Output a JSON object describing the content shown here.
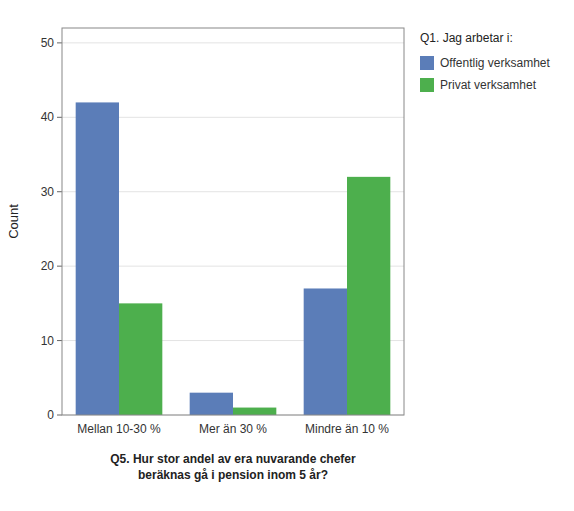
{
  "chart_data": {
    "type": "bar",
    "xlabel": "Q5. Hur stor andel av era nuvarande chefer\nberäknas gå i pension inom 5 år?",
    "ylabel": "Count",
    "legend_title": "Q1. Jag arbetar i:",
    "categories": [
      "Mellan 10-30 %",
      "Mer än 30 %",
      "Mindre än 10 %"
    ],
    "series": [
      {
        "name": "Offentlig verksamhet",
        "color": "#5B7DB8",
        "values": [
          42,
          3,
          17
        ]
      },
      {
        "name": "Privat verksamhet",
        "color": "#4DAF4D",
        "values": [
          15,
          1,
          32
        ]
      }
    ],
    "ylim": [
      0,
      52
    ],
    "yticks": [
      0,
      10,
      20,
      30,
      40,
      50
    ],
    "grid": true,
    "legend": "right"
  }
}
